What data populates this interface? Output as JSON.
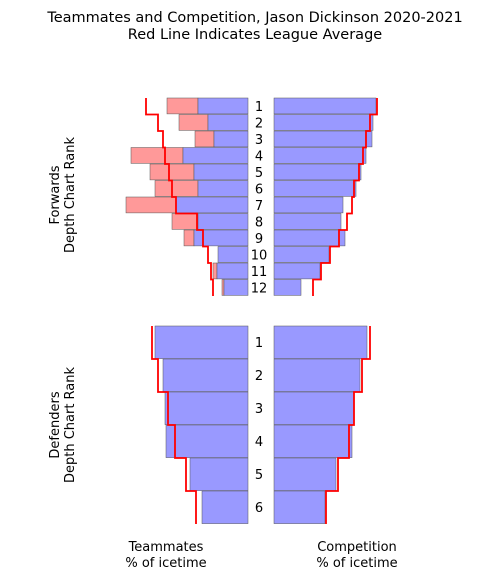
{
  "chart_data": {
    "type": "bar",
    "title": "Teammates and Competition, Jason Dickinson 2020-2021",
    "subtitle": "Red Line Indicates League Average",
    "left_xlabel_line1": "Teammates",
    "left_xlabel_line2": "% of icetime",
    "right_xlabel_line1": "Competition",
    "right_xlabel_line2": "% of icetime",
    "colors": {
      "bar_fill": "#9999ff",
      "extra_fill": "#ff9999",
      "league_avg": "#ff0000",
      "edge": "#555555"
    },
    "panels": [
      {
        "ylabel_line1": "Forwards",
        "ylabel_line2": "Depth Chart Rank",
        "ranks": [
          "1",
          "2",
          "3",
          "4",
          "5",
          "6",
          "7",
          "8",
          "9",
          "10",
          "11",
          "12"
        ],
        "teammates_base": [
          50,
          40,
          34,
          65,
          54,
          50,
          72,
          50,
          54,
          30,
          31,
          24
        ],
        "teammates_extra": [
          31,
          29,
          19,
          52,
          44,
          43,
          50,
          26,
          10,
          0,
          4,
          2
        ],
        "teammates_league_avg": [
          102,
          90,
          85,
          83,
          79,
          76,
          72,
          51,
          45,
          40,
          37,
          35
        ],
        "competition": [
          102,
          99,
          98,
          92,
          87,
          82,
          69,
          67,
          71,
          55,
          46,
          27
        ],
        "competition_league_avg": [
          103,
          96,
          92,
          89,
          85,
          80,
          78,
          73,
          65,
          56,
          47,
          39
        ]
      },
      {
        "ylabel_line1": "Defenders",
        "ylabel_line2": "Depth Chart Rank",
        "ranks": [
          "1",
          "2",
          "3",
          "4",
          "5",
          "6"
        ],
        "teammates_base": [
          93,
          85,
          83,
          82,
          58,
          46
        ],
        "teammates_extra": [
          0,
          0,
          0,
          0,
          0,
          0
        ],
        "teammates_league_avg": [
          96,
          90,
          80,
          73,
          62,
          52
        ],
        "competition": [
          93,
          86,
          80,
          78,
          62,
          51
        ],
        "competition_league_avg": [
          96,
          88,
          80,
          75,
          64,
          52
        ]
      }
    ]
  }
}
